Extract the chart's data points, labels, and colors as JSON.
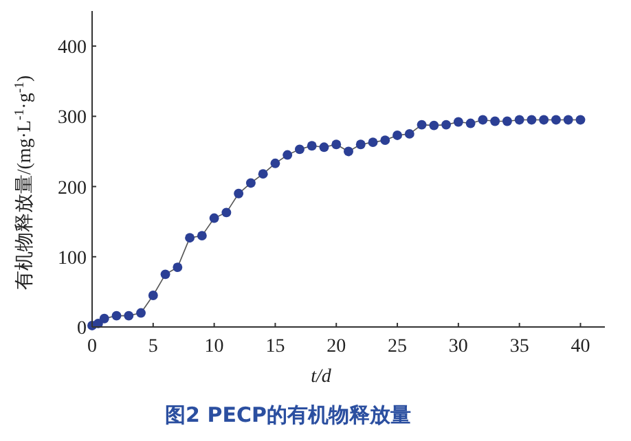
{
  "chart_data": {
    "type": "line",
    "title": "图2  PECP的有机物释放量",
    "xlabel": "t/d",
    "ylabel": "有机物释放量/(mg·L$^{-1}$·g$^{-1}$)",
    "x": [
      0,
      0.5,
      1,
      2,
      3,
      4,
      5,
      6,
      7,
      8,
      9,
      10,
      11,
      12,
      13,
      14,
      15,
      16,
      17,
      18,
      19,
      20,
      21,
      22,
      23,
      24,
      25,
      26,
      27,
      28,
      29,
      30,
      31,
      32,
      33,
      34,
      35,
      36,
      37,
      38,
      39,
      40
    ],
    "series": [
      {
        "color": "#2b3f95",
        "values": [
          2,
          5,
          12,
          16,
          16,
          20,
          45,
          75,
          85,
          127,
          130,
          155,
          163,
          190,
          205,
          218,
          233,
          245,
          253,
          258,
          256,
          260,
          250,
          260,
          263,
          266,
          273,
          275,
          288,
          287,
          288,
          292,
          290,
          295,
          293,
          293,
          295,
          295,
          295,
          295,
          295,
          295
        ]
      }
    ],
    "xlim": [
      0,
      42
    ],
    "xticks": [
      0,
      5,
      10,
      15,
      20,
      25,
      30,
      35,
      40
    ],
    "ylim": [
      0,
      450
    ],
    "yticks": [
      0,
      100,
      200,
      300,
      400
    ],
    "marker": "circle",
    "grid": false
  }
}
